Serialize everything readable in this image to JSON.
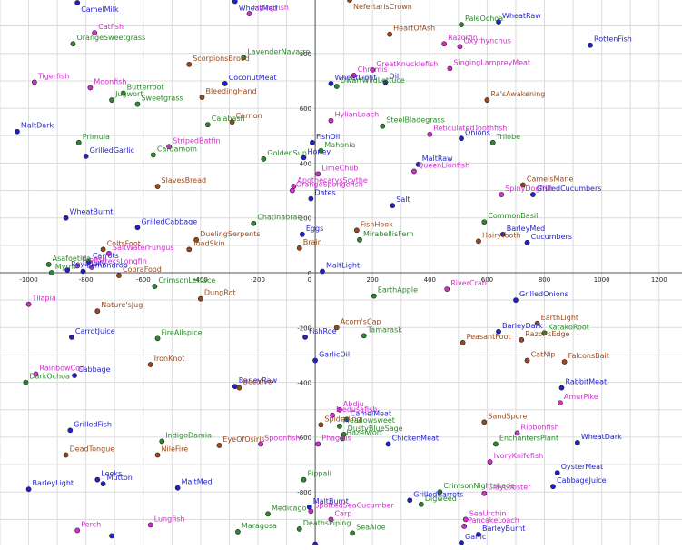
{
  "chart_data": {
    "type": "scatter",
    "title": "",
    "xlabel": "",
    "ylabel": "",
    "xlim": [
      -1100,
      1280
    ],
    "ylim": [
      -995,
      995
    ],
    "grid": true,
    "x_ticks": [
      -1000,
      -800,
      -600,
      -400,
      -200,
      200,
      400,
      600,
      800,
      1000,
      1200
    ],
    "y_ticks": [
      -800,
      -600,
      -400,
      -200,
      0,
      200,
      400,
      600,
      800
    ],
    "origin_tick": "0",
    "colors": {
      "blue": "#1f1fd0",
      "magenta": "#d42bd4",
      "green": "#2a8a2a",
      "brown": "#9a4a1a"
    },
    "points": [
      {
        "label": "CamelMilk",
        "x": -830,
        "y": 985,
        "color": "blue"
      },
      {
        "label": "WheatMed",
        "x": -280,
        "y": 990,
        "color": "blue"
      },
      {
        "label": "FlyingFish",
        "x": -230,
        "y": 945,
        "color": "magenta"
      },
      {
        "label": "NefertarisCrown",
        "x": 120,
        "y": 995,
        "color": "brown"
      },
      {
        "label": "PaleOchoa",
        "x": 510,
        "y": 905,
        "color": "green"
      },
      {
        "label": "WheatRaw",
        "x": 640,
        "y": 915,
        "color": "blue"
      },
      {
        "label": "RottenFish",
        "x": 960,
        "y": 830,
        "color": "blue"
      },
      {
        "label": "HeartOfAsh",
        "x": 260,
        "y": 870,
        "color": "brown"
      },
      {
        "label": "Razorfin",
        "x": 450,
        "y": 835,
        "color": "magenta"
      },
      {
        "label": "Oxyrhynchus",
        "x": 505,
        "y": 825,
        "color": "magenta"
      },
      {
        "label": "Catfish",
        "x": -770,
        "y": 875,
        "color": "magenta"
      },
      {
        "label": "OrangeSweetgrass",
        "x": -845,
        "y": 835,
        "color": "green"
      },
      {
        "label": "LavenderNavarre",
        "x": -250,
        "y": 785,
        "color": "green"
      },
      {
        "label": "ScorpionsBrood",
        "x": -440,
        "y": 760,
        "color": "brown"
      },
      {
        "label": "SingingLampreyMeat",
        "x": 470,
        "y": 745,
        "color": "magenta"
      },
      {
        "label": "GreatKnucklefish",
        "x": 200,
        "y": 740,
        "color": "magenta"
      },
      {
        "label": "Chromis",
        "x": 135,
        "y": 720,
        "color": "magenta"
      },
      {
        "label": "Tigerfish",
        "x": -980,
        "y": 695,
        "color": "magenta"
      },
      {
        "label": "Moonfish",
        "x": -785,
        "y": 675,
        "color": "magenta"
      },
      {
        "label": "CoconutMeat",
        "x": -315,
        "y": 690,
        "color": "blue"
      },
      {
        "label": "WheatLight",
        "x": 55,
        "y": 690,
        "color": "blue"
      },
      {
        "label": "Oil",
        "x": 245,
        "y": 695,
        "color": "blue"
      },
      {
        "label": "DwarfWildLettuce",
        "x": 75,
        "y": 680,
        "color": "green"
      },
      {
        "label": "Butterroot",
        "x": -670,
        "y": 655,
        "color": "green"
      },
      {
        "label": "Jugwort",
        "x": -710,
        "y": 630,
        "color": "green"
      },
      {
        "label": "Sweetgrass",
        "x": -620,
        "y": 615,
        "color": "green"
      },
      {
        "label": "BleedingHand",
        "x": -395,
        "y": 640,
        "color": "brown"
      },
      {
        "label": "Ra'sAwakening",
        "x": 600,
        "y": 630,
        "color": "brown"
      },
      {
        "label": "HylianLoach",
        "x": 55,
        "y": 555,
        "color": "magenta"
      },
      {
        "label": "Calabash",
        "x": -375,
        "y": 540,
        "color": "green"
      },
      {
        "label": "Carrion",
        "x": -290,
        "y": 550,
        "color": "brown"
      },
      {
        "label": "SteelBladegrass",
        "x": 235,
        "y": 535,
        "color": "green"
      },
      {
        "label": "MaltDark",
        "x": -1040,
        "y": 515,
        "color": "blue"
      },
      {
        "label": "ReticulatedToothfish",
        "x": 400,
        "y": 505,
        "color": "magenta"
      },
      {
        "label": "Onions",
        "x": 510,
        "y": 490,
        "color": "blue"
      },
      {
        "label": "Trilobe",
        "x": 620,
        "y": 475,
        "color": "green"
      },
      {
        "label": "Primula",
        "x": -825,
        "y": 475,
        "color": "green"
      },
      {
        "label": "StripedBatfin",
        "x": -510,
        "y": 460,
        "color": "magenta"
      },
      {
        "label": "FishOil",
        "x": -10,
        "y": 475,
        "color": "blue"
      },
      {
        "label": "Mahonia",
        "x": 20,
        "y": 445,
        "color": "green"
      },
      {
        "label": "Cardamom",
        "x": -565,
        "y": 430,
        "color": "green"
      },
      {
        "label": "GrilledGarlic",
        "x": -800,
        "y": 425,
        "color": "blue"
      },
      {
        "label": "GoldenSun",
        "x": -180,
        "y": 415,
        "color": "green"
      },
      {
        "label": "Honey",
        "x": -40,
        "y": 420,
        "color": "blue"
      },
      {
        "label": "MaltRaw",
        "x": 360,
        "y": 395,
        "color": "blue"
      },
      {
        "label": "QueenLionfish",
        "x": 345,
        "y": 370,
        "color": "magenta"
      },
      {
        "label": "LimeChub",
        "x": 10,
        "y": 360,
        "color": "magenta"
      },
      {
        "label": "ApothecarysScythe",
        "x": -75,
        "y": 315,
        "color": "magenta"
      },
      {
        "label": "CamelsMane",
        "x": 725,
        "y": 320,
        "color": "brown"
      },
      {
        "label": "SlavesBread",
        "x": -550,
        "y": 315,
        "color": "brown"
      },
      {
        "label": "OrangeSpongefish",
        "x": -80,
        "y": 300,
        "color": "magenta"
      },
      {
        "label": "SpinyDogfish",
        "x": 650,
        "y": 285,
        "color": "magenta"
      },
      {
        "label": "GrilledCucumbers",
        "x": 760,
        "y": 285,
        "color": "blue"
      },
      {
        "label": "Dates",
        "x": -15,
        "y": 270,
        "color": "blue"
      },
      {
        "label": "Salt",
        "x": 270,
        "y": 245,
        "color": "blue"
      },
      {
        "label": "WheatBurnt",
        "x": -870,
        "y": 200,
        "color": "blue"
      },
      {
        "label": "Chatinabrae",
        "x": -215,
        "y": 180,
        "color": "green"
      },
      {
        "label": "GrilledCabbage",
        "x": -620,
        "y": 165,
        "color": "blue"
      },
      {
        "label": "CommonBasil",
        "x": 590,
        "y": 185,
        "color": "green"
      },
      {
        "label": "FishHook",
        "x": 145,
        "y": 155,
        "color": "brown"
      },
      {
        "label": "BarleyMed",
        "x": 655,
        "y": 140,
        "color": "blue"
      },
      {
        "label": "Eggs",
        "x": -45,
        "y": 140,
        "color": "blue"
      },
      {
        "label": "MirabellisFern",
        "x": 155,
        "y": 120,
        "color": "green"
      },
      {
        "label": "HairyTooth",
        "x": 570,
        "y": 115,
        "color": "brown"
      },
      {
        "label": "Cucumbers",
        "x": 740,
        "y": 110,
        "color": "blue"
      },
      {
        "label": "DuelingSerpents",
        "x": -415,
        "y": 120,
        "color": "brown"
      },
      {
        "label": "Brain",
        "x": -55,
        "y": 90,
        "color": "brown"
      },
      {
        "label": "ColtsFoot",
        "x": -740,
        "y": 85,
        "color": "brown"
      },
      {
        "label": "SaltWaterFungus",
        "x": -720,
        "y": 70,
        "color": "magenta"
      },
      {
        "label": "ToadSkin",
        "x": -440,
        "y": 85,
        "color": "brown"
      },
      {
        "label": "Carrots",
        "x": -790,
        "y": 40,
        "color": "blue"
      },
      {
        "label": "Tilefish",
        "x": -830,
        "y": 25,
        "color": "magenta"
      },
      {
        "label": "OctecsLongfin",
        "x": -780,
        "y": 20,
        "color": "magenta"
      },
      {
        "label": "Asafoetida",
        "x": -930,
        "y": 30,
        "color": "green"
      },
      {
        "label": "RoyalJelly",
        "x": -865,
        "y": 10,
        "color": "blue"
      },
      {
        "label": "Myrrh",
        "x": -920,
        "y": 0,
        "color": "green"
      },
      {
        "label": "Lemondrop",
        "x": -810,
        "y": 5,
        "color": "blue"
      },
      {
        "label": "MaltLight",
        "x": 25,
        "y": 5,
        "color": "blue"
      },
      {
        "label": "CobraFood",
        "x": -685,
        "y": -10,
        "color": "brown"
      },
      {
        "label": "CrimsonLettuce",
        "x": -560,
        "y": -50,
        "color": "green"
      },
      {
        "label": "RiverCrab",
        "x": 460,
        "y": -60,
        "color": "magenta"
      },
      {
        "label": "EarthApple",
        "x": 205,
        "y": -85,
        "color": "green"
      },
      {
        "label": "GrilledOnions",
        "x": 700,
        "y": -100,
        "color": "blue"
      },
      {
        "label": "DungRot",
        "x": -400,
        "y": -95,
        "color": "brown"
      },
      {
        "label": "Tilapia",
        "x": -1000,
        "y": -115,
        "color": "magenta"
      },
      {
        "label": "Nature'sJug",
        "x": -760,
        "y": -140,
        "color": "brown"
      },
      {
        "label": "EarthLight",
        "x": 775,
        "y": -185,
        "color": "brown"
      },
      {
        "label": "Acorn'sCap",
        "x": 75,
        "y": -200,
        "color": "brown"
      },
      {
        "label": "BarleyDark",
        "x": 640,
        "y": -215,
        "color": "blue"
      },
      {
        "label": "KatakoRoot",
        "x": 800,
        "y": -220,
        "color": "green"
      },
      {
        "label": "Tamarask",
        "x": 170,
        "y": -230,
        "color": "green"
      },
      {
        "label": "CarrotJuice",
        "x": -850,
        "y": -235,
        "color": "blue"
      },
      {
        "label": "FireAllspice",
        "x": -550,
        "y": -240,
        "color": "green"
      },
      {
        "label": "FishRoe",
        "x": -35,
        "y": -235,
        "color": "blue"
      },
      {
        "label": "PeasantFoot",
        "x": 515,
        "y": -255,
        "color": "brown"
      },
      {
        "label": "Razor'sEdge",
        "x": 720,
        "y": -245,
        "color": "brown"
      },
      {
        "label": "CatNip",
        "x": 740,
        "y": -320,
        "color": "brown"
      },
      {
        "label": "FalconsBait",
        "x": 870,
        "y": -325,
        "color": "brown"
      },
      {
        "label": "GarlicOil",
        "x": 0,
        "y": -320,
        "color": "blue"
      },
      {
        "label": "IronKnot",
        "x": -575,
        "y": -335,
        "color": "brown"
      },
      {
        "label": "RainbowCod",
        "x": -975,
        "y": -370,
        "color": "magenta"
      },
      {
        "label": "Cabbage",
        "x": -840,
        "y": -375,
        "color": "blue"
      },
      {
        "label": "DarkOchoa",
        "x": -1010,
        "y": -400,
        "color": "green"
      },
      {
        "label": "BarleyRaw",
        "x": -280,
        "y": -415,
        "color": "blue"
      },
      {
        "label": "Beehive",
        "x": -265,
        "y": -420,
        "color": "brown"
      },
      {
        "label": "RabbitMeat",
        "x": 860,
        "y": -420,
        "color": "blue"
      },
      {
        "label": "AmurPike",
        "x": 855,
        "y": -475,
        "color": "magenta"
      },
      {
        "label": "Abdju",
        "x": 85,
        "y": -500,
        "color": "magenta"
      },
      {
        "label": "Medusafish",
        "x": 60,
        "y": -520,
        "color": "magenta"
      },
      {
        "label": "CamelMeat",
        "x": 110,
        "y": -535,
        "color": "blue"
      },
      {
        "label": "SandSpore",
        "x": 590,
        "y": -545,
        "color": "brown"
      },
      {
        "label": "Spiderling",
        "x": 20,
        "y": -555,
        "color": "brown"
      },
      {
        "label": "Meadowsweet",
        "x": 85,
        "y": -560,
        "color": "green"
      },
      {
        "label": "Ribbonfish",
        "x": 705,
        "y": -585,
        "color": "magenta"
      },
      {
        "label": "GrilledFish",
        "x": -855,
        "y": -575,
        "color": "blue"
      },
      {
        "label": "DustyBlueSage",
        "x": 100,
        "y": -590,
        "color": "green"
      },
      {
        "label": "Hazelwort",
        "x": 95,
        "y": -605,
        "color": "green"
      },
      {
        "label": "Spoonfish",
        "x": -190,
        "y": -625,
        "color": "magenta"
      },
      {
        "label": "Phagrus",
        "x": 10,
        "y": -625,
        "color": "magenta"
      },
      {
        "label": "IndigoDamia",
        "x": -535,
        "y": -615,
        "color": "green"
      },
      {
        "label": "EyeOfOsiris",
        "x": -335,
        "y": -630,
        "color": "brown"
      },
      {
        "label": "ChickenMeat",
        "x": 255,
        "y": -625,
        "color": "blue"
      },
      {
        "label": "EnchantersPlant",
        "x": 630,
        "y": -625,
        "color": "green"
      },
      {
        "label": "WheatDark",
        "x": 915,
        "y": -620,
        "color": "blue"
      },
      {
        "label": "DeadTongue",
        "x": -870,
        "y": -665,
        "color": "brown"
      },
      {
        "label": "NileFire",
        "x": -550,
        "y": -665,
        "color": "brown"
      },
      {
        "label": "IvoryKnifefish",
        "x": 610,
        "y": -690,
        "color": "magenta"
      },
      {
        "label": "OysterMeat",
        "x": 845,
        "y": -730,
        "color": "blue"
      },
      {
        "label": "Pippali",
        "x": -40,
        "y": -755,
        "color": "green"
      },
      {
        "label": "Leeks",
        "x": -760,
        "y": -755,
        "color": "blue"
      },
      {
        "label": "Mutton",
        "x": -740,
        "y": -770,
        "color": "blue"
      },
      {
        "label": "MaltMed",
        "x": -480,
        "y": -785,
        "color": "blue"
      },
      {
        "label": "CabbageJuice",
        "x": 830,
        "y": -780,
        "color": "blue"
      },
      {
        "label": "CrimsonNightshade",
        "x": 435,
        "y": -800,
        "color": "green"
      },
      {
        "label": "ClayLobster",
        "x": 590,
        "y": -805,
        "color": "magenta"
      },
      {
        "label": "BarleyLight",
        "x": -1000,
        "y": -790,
        "color": "blue"
      },
      {
        "label": "GrilledCarrots",
        "x": 330,
        "y": -830,
        "color": "blue"
      },
      {
        "label": "Digweed",
        "x": 370,
        "y": -845,
        "color": "green"
      },
      {
        "label": "MaltBurnt",
        "x": -20,
        "y": -855,
        "color": "blue"
      },
      {
        "label": "SpottedSeaCucumber",
        "x": -15,
        "y": -870,
        "color": "magenta"
      },
      {
        "label": "Medicago",
        "x": -165,
        "y": -880,
        "color": "green"
      },
      {
        "label": "Carp",
        "x": 55,
        "y": -900,
        "color": "magenta"
      },
      {
        "label": "SeaUrchin",
        "x": 525,
        "y": -900,
        "color": "magenta"
      },
      {
        "label": "Lungfish",
        "x": -575,
        "y": -920,
        "color": "magenta"
      },
      {
        "label": "PancakeLoach",
        "x": 520,
        "y": -925,
        "color": "magenta"
      },
      {
        "label": "DeathsPiping",
        "x": -55,
        "y": -935,
        "color": "green"
      },
      {
        "label": "Perch",
        "x": -830,
        "y": -940,
        "color": "magenta"
      },
      {
        "label": "Maragosa",
        "x": -270,
        "y": -945,
        "color": "green"
      },
      {
        "label": "SeaAloe",
        "x": 130,
        "y": -950,
        "color": "green"
      },
      {
        "label": "BarleyBurnt",
        "x": 570,
        "y": -955,
        "color": "blue"
      },
      {
        "label": "Garlic",
        "x": 510,
        "y": -985,
        "color": "blue"
      },
      {
        "label": "",
        "x": -710,
        "y": -960,
        "color": "blue"
      },
      {
        "label": "",
        "x": 0,
        "y": -990,
        "color": "blue"
      }
    ]
  }
}
